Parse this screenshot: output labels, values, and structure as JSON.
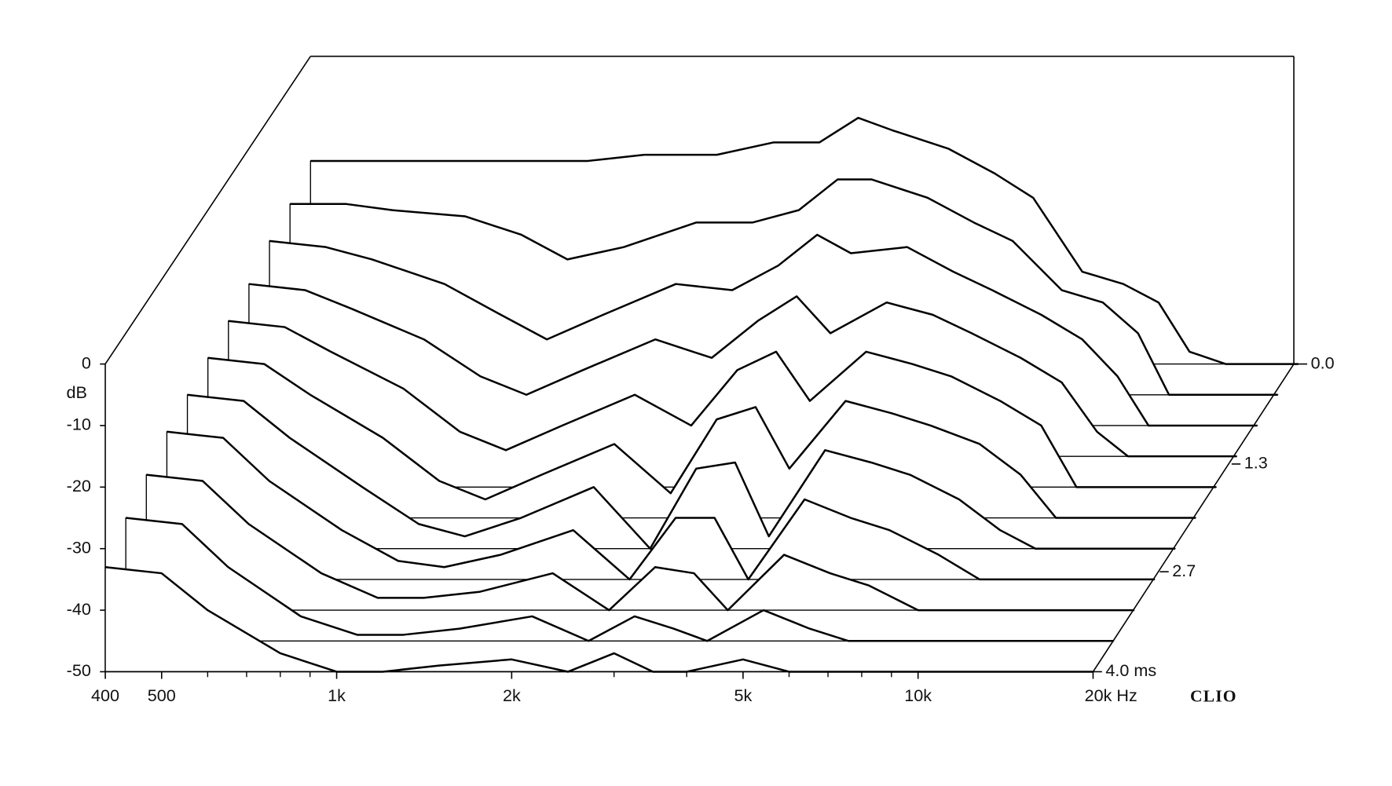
{
  "chart_data": {
    "type": "waterfall",
    "color": "#000000",
    "xlog": true,
    "xlim": [
      400,
      20000
    ],
    "xticks": [
      400,
      500,
      {
        "value": 1000,
        "label": "1k"
      },
      {
        "value": 2000,
        "label": "2k"
      },
      {
        "value": 5000,
        "label": "5k"
      },
      {
        "value": 10000,
        "label": "10k"
      },
      {
        "value": 20000,
        "label": "20k Hz"
      }
    ],
    "xminorticks": [
      600,
      700,
      800,
      900,
      3000,
      4000,
      6000,
      7000,
      8000,
      9000
    ],
    "ylim": [
      -50,
      0
    ],
    "yticks": [
      -50,
      -40,
      -30,
      -20,
      -10,
      0
    ],
    "ylabel": "dB",
    "zlim": [
      0,
      4
    ],
    "zticks": [
      {
        "value": 0,
        "label": "0.0"
      },
      1.3,
      2.7,
      {
        "value": 4,
        "label": "4.0 ms"
      }
    ],
    "brand": "CLIO",
    "x": [
      400,
      500,
      600,
      800,
      1000,
      1200,
      1500,
      2000,
      2500,
      3000,
      3500,
      4000,
      5000,
      6000,
      7000,
      8500,
      10000,
      11500,
      13000,
      15000,
      17500,
      20000
    ],
    "slices": [
      {
        "time": 0,
        "values": [
          -17,
          -17,
          -17,
          -17,
          -17,
          -17,
          -16,
          -16,
          -14,
          -14,
          -10,
          -12,
          -15,
          -19,
          -23,
          -35,
          -37,
          -40,
          -48,
          -50,
          -50,
          -50
        ]
      },
      {
        "time": 0.4,
        "values": [
          -19,
          -19,
          -20,
          -21,
          -24,
          -28,
          -26,
          -22,
          -22,
          -20,
          -15,
          -15,
          -18,
          -22,
          -25,
          -33,
          -35,
          -40,
          -50,
          -50,
          -50,
          -50
        ]
      },
      {
        "time": 0.8,
        "values": [
          -20,
          -21,
          -23,
          -27,
          -32,
          -36,
          -32,
          -27,
          -28,
          -24,
          -19,
          -22,
          -21,
          -25,
          -28,
          -32,
          -36,
          -42,
          -50,
          -50,
          -50,
          -50
        ]
      },
      {
        "time": 1.2,
        "values": [
          -22,
          -23,
          -26,
          -31,
          -37,
          -40,
          -36,
          -31,
          -34,
          -28,
          -24,
          -30,
          -25,
          -27,
          -30,
          -34,
          -38,
          -46,
          -50,
          -50,
          -50,
          -50
        ]
      },
      {
        "time": 1.6,
        "values": [
          -23,
          -24,
          -28,
          -34,
          -41,
          -44,
          -40,
          -35,
          -40,
          -31,
          -28,
          -36,
          -28,
          -30,
          -32,
          -36,
          -40,
          -50,
          -50,
          -50,
          -50,
          -50
        ]
      },
      {
        "time": 2.0,
        "values": [
          -24,
          -25,
          -30,
          -37,
          -44,
          -47,
          -43,
          -38,
          -46,
          -34,
          -32,
          -42,
          -31,
          -33,
          -35,
          -38,
          -43,
          -50,
          -50,
          -50,
          -50,
          -50
        ]
      },
      {
        "time": 2.4,
        "values": [
          -25,
          -26,
          -32,
          -40,
          -46,
          -48,
          -45,
          -40,
          -50,
          -37,
          -36,
          -48,
          -34,
          -36,
          -38,
          -42,
          -47,
          -50,
          -50,
          -50,
          -50,
          -50
        ]
      },
      {
        "time": 2.8,
        "values": [
          -26,
          -27,
          -34,
          -42,
          -47,
          -48,
          -46,
          -42,
          -50,
          -40,
          -40,
          -50,
          -37,
          -40,
          -42,
          -46,
          -50,
          -50,
          -50,
          -50,
          -50,
          -50
        ]
      },
      {
        "time": 3.2,
        "values": [
          -28,
          -29,
          -36,
          -44,
          -48,
          -48,
          -47,
          -44,
          -50,
          -43,
          -44,
          -50,
          -41,
          -44,
          -46,
          -50,
          -50,
          -50,
          -50,
          -50,
          -50,
          -50
        ]
      },
      {
        "time": 3.6,
        "values": [
          -30,
          -31,
          -38,
          -46,
          -49,
          -49,
          -48,
          -46,
          -50,
          -46,
          -48,
          -50,
          -45,
          -48,
          -50,
          -50,
          -50,
          -50,
          -50,
          -50,
          -50,
          -50
        ]
      },
      {
        "time": 4.0,
        "values": [
          -33,
          -34,
          -40,
          -47,
          -50,
          -50,
          -49,
          -48,
          -50,
          -47,
          -50,
          -50,
          -48,
          -50,
          -50,
          -50,
          -50,
          -50,
          -50,
          -50,
          -50,
          -50
        ]
      }
    ]
  }
}
